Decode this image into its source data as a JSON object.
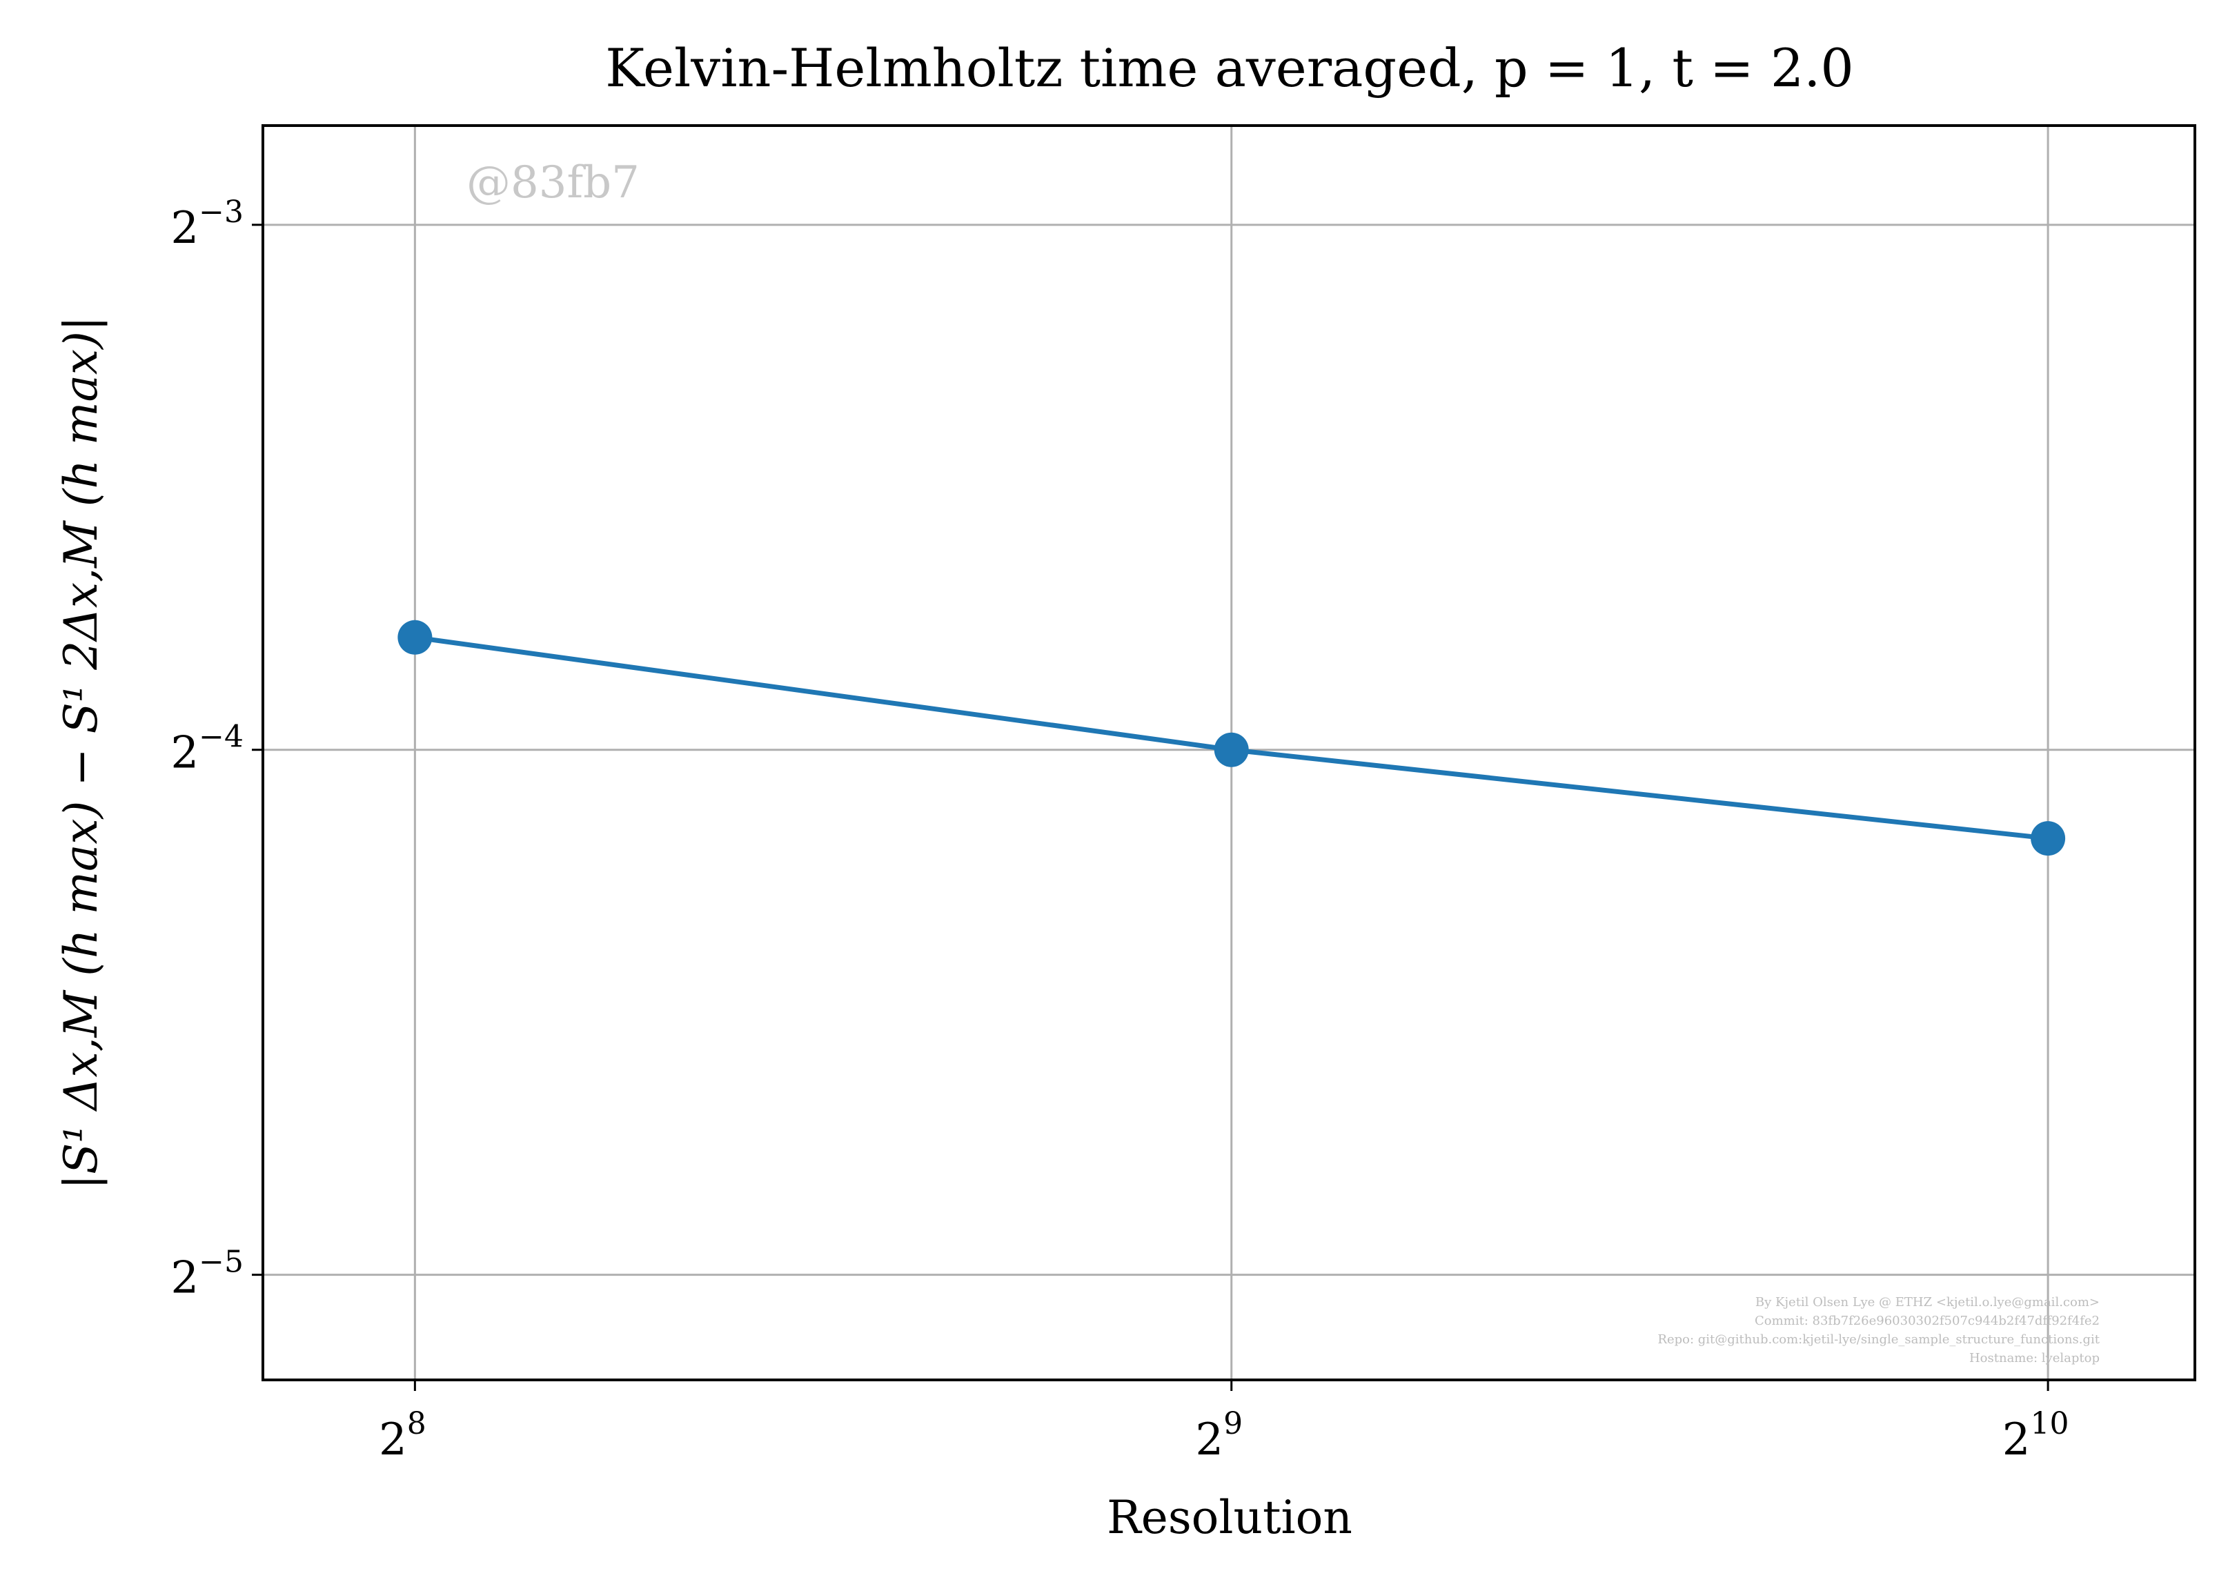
{
  "chart_data": {
    "type": "line",
    "title": "Kelvin-Helmholtz time averaged, p = 1, t = 2.0",
    "xlabel": "Resolution",
    "ylabel": "|S¹ Δx,M (h max) − S¹ 2Δx,M (h max)|",
    "x_scale": "log2",
    "y_scale": "log2",
    "x": [
      256,
      512,
      1024
    ],
    "series": [
      {
        "values": [
          0.0725,
          0.0625,
          0.0556
        ],
        "color": "#1f77b4"
      }
    ],
    "xlim": [
      225,
      1160
    ],
    "ylim": [
      0.0272,
      0.1425
    ],
    "x_ticks": [
      {
        "base": "2",
        "exp": "8",
        "value": 256
      },
      {
        "base": "2",
        "exp": "9",
        "value": 512
      },
      {
        "base": "2",
        "exp": "10",
        "value": 1024
      }
    ],
    "y_ticks": [
      {
        "base": "2",
        "exp": "−3",
        "value": 0.125
      },
      {
        "base": "2",
        "exp": "−4",
        "value": 0.0625
      },
      {
        "base": "2",
        "exp": "−5",
        "value": 0.03125
      }
    ],
    "grid": true,
    "legend": "none",
    "watermark": "@83fb7",
    "credits": [
      "By Kjetil Olsen Lye @ ETHZ <kjetil.o.lye@gmail.com>",
      "Commit: 83fb7f26e96030302f507c944b2f47dff92f4fe2",
      "Repo: git@github.com:kjetil-lye/single_sample_structure_functions.git",
      "Hostname: lyelaptop"
    ]
  }
}
